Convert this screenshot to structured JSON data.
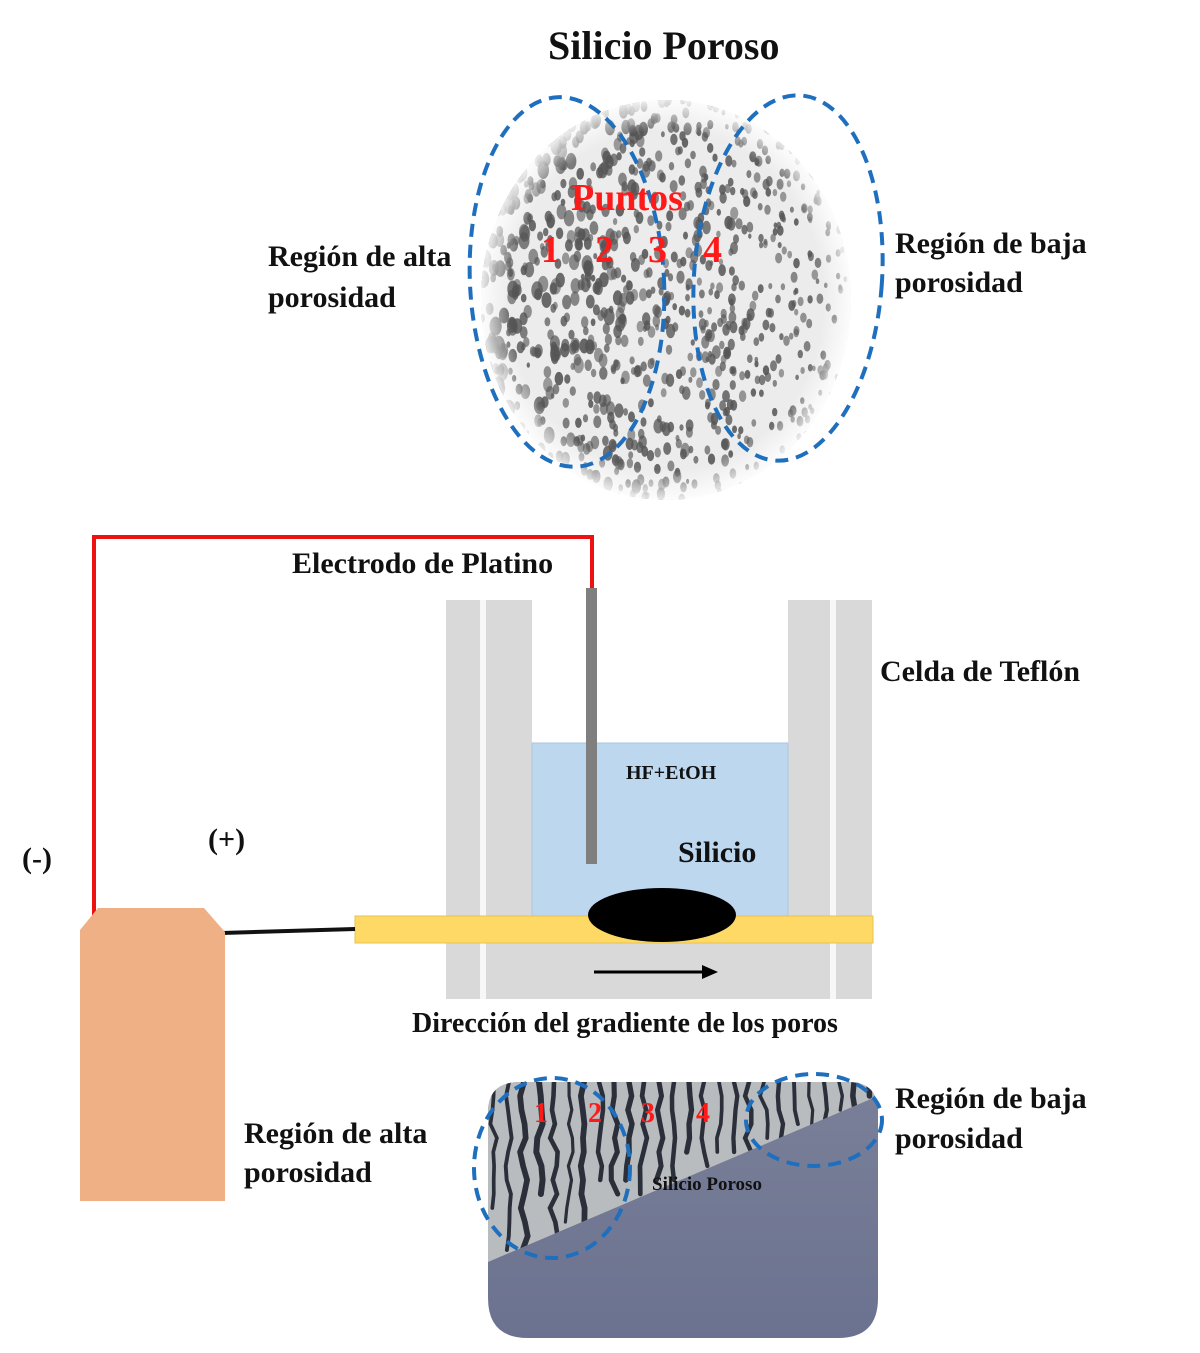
{
  "title": "Silicio Poroso",
  "top_disc": {
    "puntos_label": "Puntos",
    "points": [
      "1",
      "2",
      "3",
      "4"
    ],
    "left_label_line1": "Región de alta",
    "left_label_line2": "porosidad",
    "right_label_line1": "Región de baja",
    "right_label_line2": "porosidad"
  },
  "cell": {
    "electrode_label": "Electrodo de Platino",
    "cell_label": "Celda de Teflón",
    "electrolyte_label": "HF+EtOH",
    "silicon_label": "Silicio",
    "negative_label": "(-)",
    "positive_label": "(+)",
    "gradient_label": "Dirección del gradiente de los poros"
  },
  "cross_section": {
    "points": [
      "1",
      "2",
      "3",
      "4"
    ],
    "layer_label": "Silicio Poroso",
    "left_label_line1": "Región de alta",
    "left_label_line2": "porosidad",
    "right_label_line1": "Región de baja",
    "right_label_line2": "porosidad"
  },
  "colors": {
    "wire_red": "#ee1111",
    "dashed_blue": "#1f6fbf",
    "teflon": "#d9d9d9",
    "electrolyte": "#bdd7ee",
    "contact_yellow": "#ffd966",
    "power_source": "#eeb084",
    "substrate": "#6e7590",
    "point_red": "#ff1a1a"
  }
}
